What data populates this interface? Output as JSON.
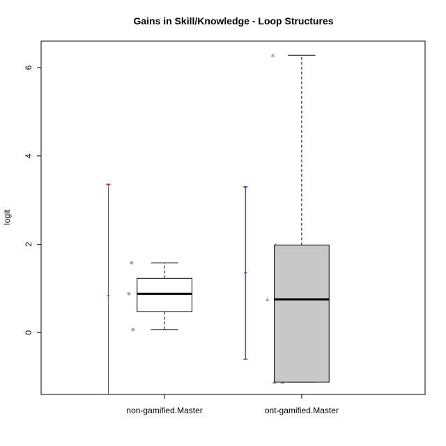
{
  "chart_data": {
    "type": "box",
    "title": "Gains in Skill/Knowledge - Loop Structures",
    "xlabel": "",
    "ylabel": "logit",
    "ylim": [
      -1.4,
      6.6
    ],
    "yticks": [
      0,
      2,
      4,
      6
    ],
    "categories": [
      "non-gamified.Master",
      "ont-gamified.Master"
    ],
    "boxes": [
      {
        "name": "non-gamified.Master",
        "whisker_low": 0.07,
        "q1": 0.47,
        "median": 0.88,
        "q3": 1.23,
        "whisker_high": 1.58,
        "fill": "#ffffff"
      },
      {
        "name": "ont-gamified.Master",
        "whisker_low": -1.12,
        "q1": -1.12,
        "median": 0.75,
        "q3": 1.98,
        "whisker_high": 6.28,
        "fill": "#c8c8c8"
      }
    ],
    "intervals": [
      {
        "group": "non-gamified.Master",
        "low": -1.4,
        "mid": 0.84,
        "high": 3.36,
        "color": "#ff0000"
      },
      {
        "group": "ont-gamified.Master",
        "low": -0.6,
        "mid": 1.35,
        "high": 3.3,
        "color": "#0000cc"
      }
    ],
    "points": [
      {
        "group": "non-gamified.Master",
        "shape": "circle",
        "jitter": -0.24,
        "y": 1.58
      },
      {
        "group": "non-gamified.Master",
        "shape": "circle",
        "jitter": -0.26,
        "y": 0.88
      },
      {
        "group": "non-gamified.Master",
        "shape": "circle",
        "jitter": -0.23,
        "y": 0.07
      },
      {
        "group": "ont-gamified.Master",
        "shape": "triangle",
        "jitter": -0.21,
        "y": 6.28
      },
      {
        "group": "ont-gamified.Master",
        "shape": "triangle",
        "jitter": -0.19,
        "y": 1.98
      },
      {
        "group": "ont-gamified.Master",
        "shape": "triangle",
        "jitter": -0.25,
        "y": 0.75
      },
      {
        "group": "ont-gamified.Master",
        "shape": "triangle",
        "jitter": -0.2,
        "y": -1.12
      },
      {
        "group": "ont-gamified.Master",
        "shape": "triangle",
        "jitter": -0.14,
        "y": -1.12
      }
    ],
    "point_color": "#a9a9a9",
    "grid": false,
    "legend": "none"
  }
}
